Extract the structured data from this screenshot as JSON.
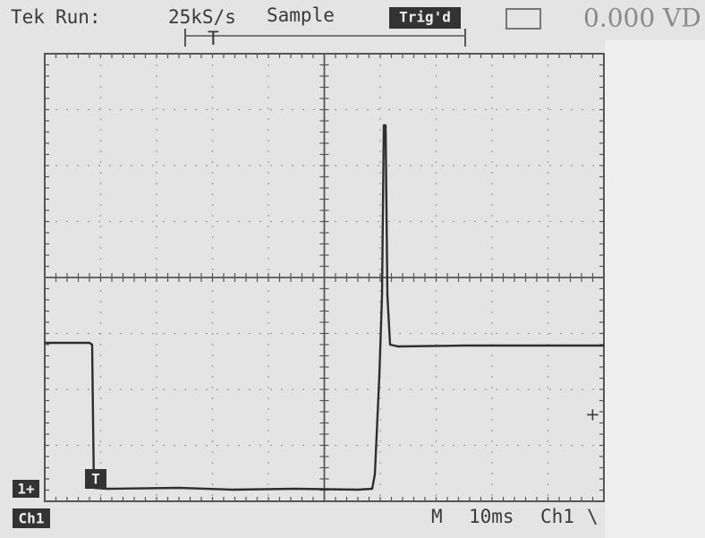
{
  "header": {
    "brand": "Tek",
    "status": "Run:",
    "rate": "25kS/s",
    "mode": "Sample",
    "trigger_state": "Trig'd",
    "readout": "0.000 VD"
  },
  "markers": {
    "trigger_position": "T",
    "trigger_level": "T",
    "channel_ground": "1+"
  },
  "footer": {
    "channel": "Ch1",
    "timebase_label": "M",
    "timebase": "10ms",
    "trigger_source": "Ch1",
    "slope": "\\"
  }
}
